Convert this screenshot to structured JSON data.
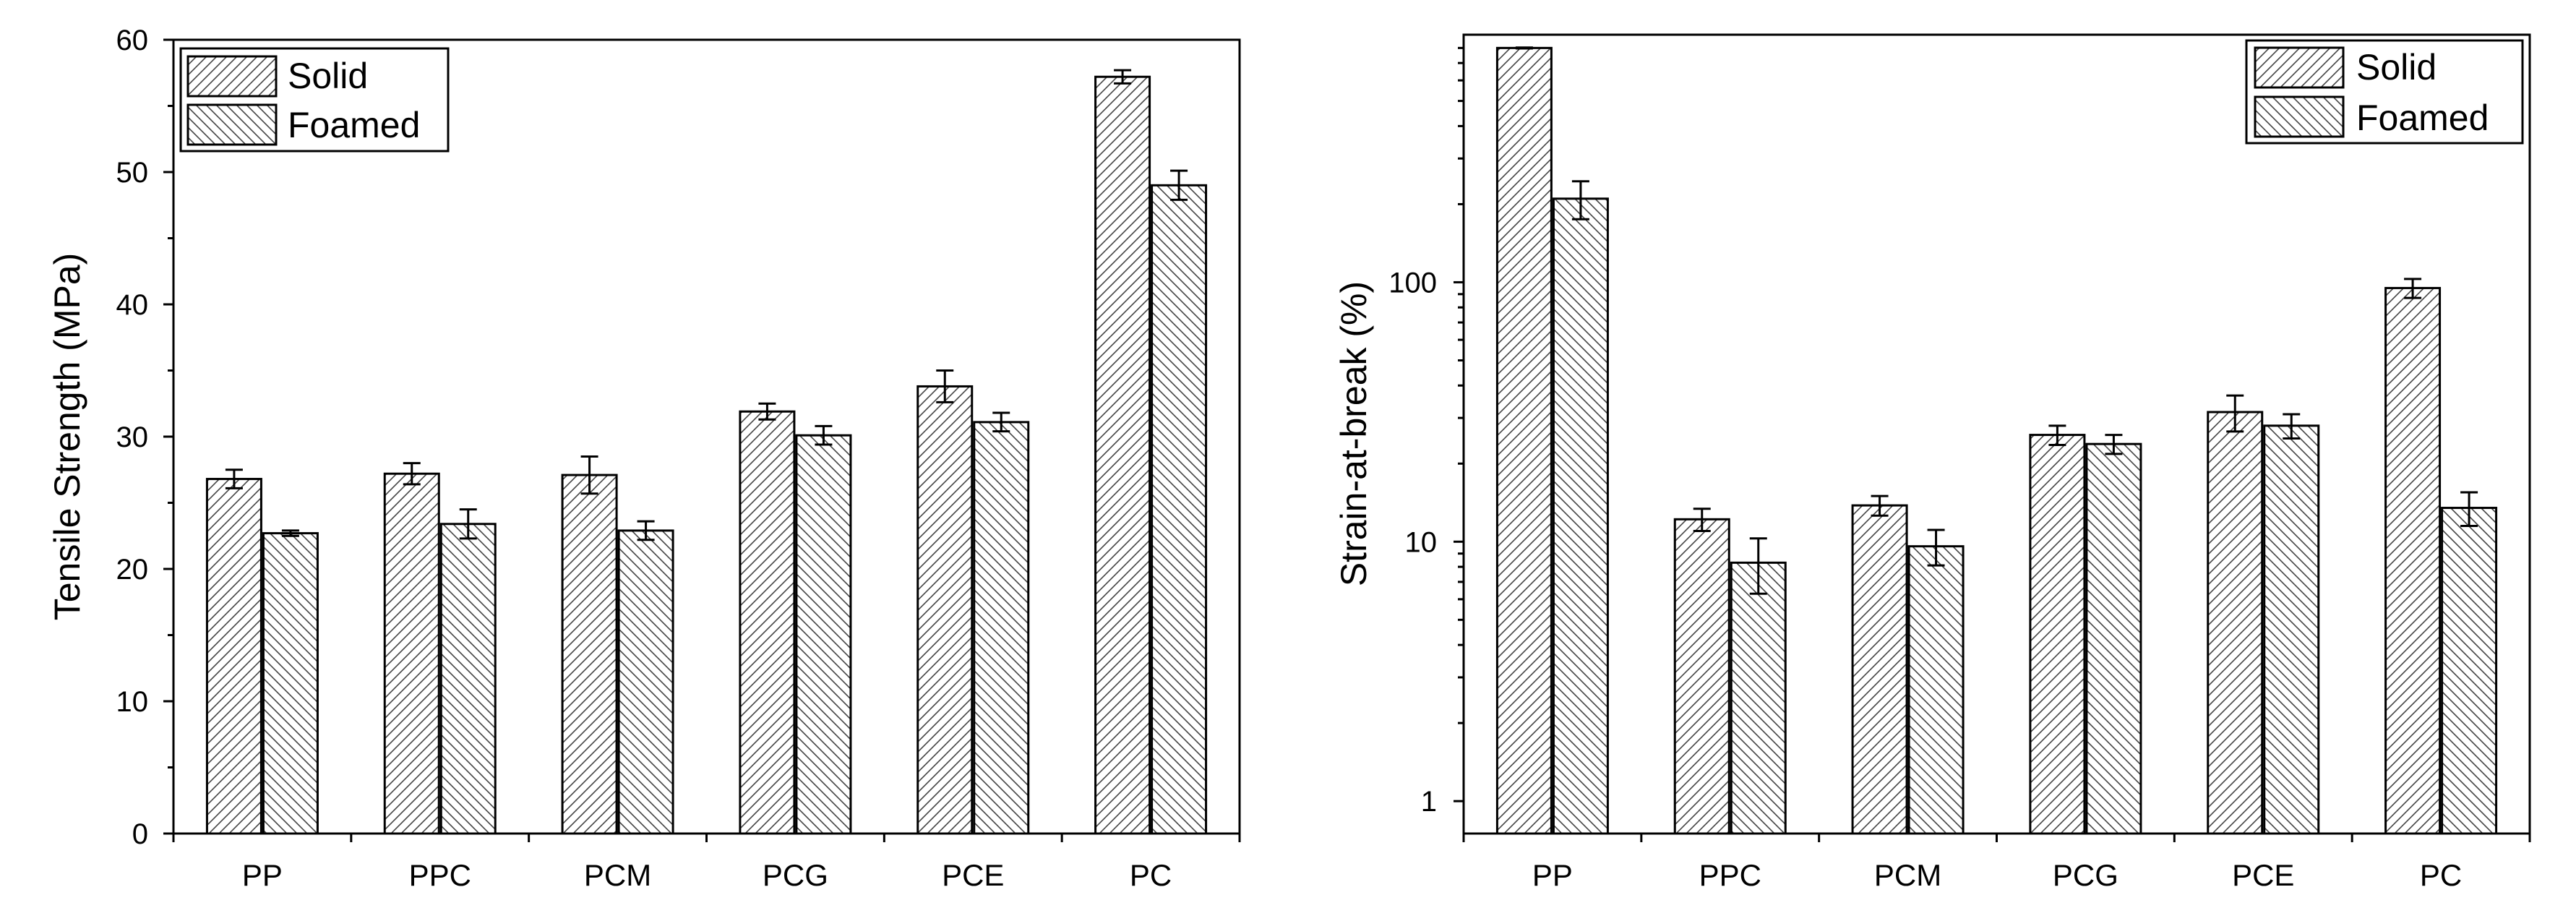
{
  "chart_data": [
    {
      "type": "bar",
      "scale": "linear",
      "title": "",
      "xlabel": "",
      "ylabel": "Tensile Strength (MPa)",
      "ylim": [
        0,
        60
      ],
      "yticks": [
        0,
        10,
        20,
        30,
        40,
        50,
        60
      ],
      "ytick_labels": [
        "0",
        "10",
        "20",
        "30",
        "40",
        "50",
        "60"
      ],
      "categories": [
        "PP",
        "PPC",
        "PCM",
        "PCG",
        "PCE",
        "PC"
      ],
      "legend_position": "top-left",
      "series": [
        {
          "name": "Solid",
          "pattern": "hatch-right",
          "values": [
            26.8,
            27.2,
            27.1,
            31.9,
            33.8,
            57.2
          ],
          "errors": [
            0.7,
            0.8,
            1.4,
            0.6,
            1.2,
            0.5
          ]
        },
        {
          "name": "Foamed",
          "pattern": "hatch-left",
          "values": [
            22.7,
            23.4,
            22.9,
            30.1,
            31.1,
            49.0
          ],
          "errors": [
            0.2,
            1.1,
            0.7,
            0.7,
            0.7,
            1.1
          ]
        }
      ]
    },
    {
      "type": "bar",
      "scale": "log",
      "title": "",
      "xlabel": "",
      "ylabel": "Strain-at-break (%)",
      "ylim": [
        0.75,
        900
      ],
      "yticks": [
        1,
        10,
        100
      ],
      "ytick_labels": [
        "1",
        "10",
        "100"
      ],
      "categories": [
        "PP",
        "PPC",
        "PCM",
        "PCG",
        "PCE",
        "PC"
      ],
      "legend_position": "top-right",
      "series": [
        {
          "name": "Solid",
          "pattern": "hatch-right",
          "values": [
            800,
            12.2,
            13.8,
            25.8,
            31.6,
            95
          ],
          "errors": [
            3,
            1.2,
            1.2,
            2.2,
            5,
            8
          ]
        },
        {
          "name": "Foamed",
          "pattern": "hatch-left",
          "values": [
            210,
            8.3,
            9.6,
            23.8,
            28,
            13.5
          ],
          "errors": [
            35,
            2,
            1.5,
            2,
            3,
            2
          ]
        }
      ]
    }
  ]
}
